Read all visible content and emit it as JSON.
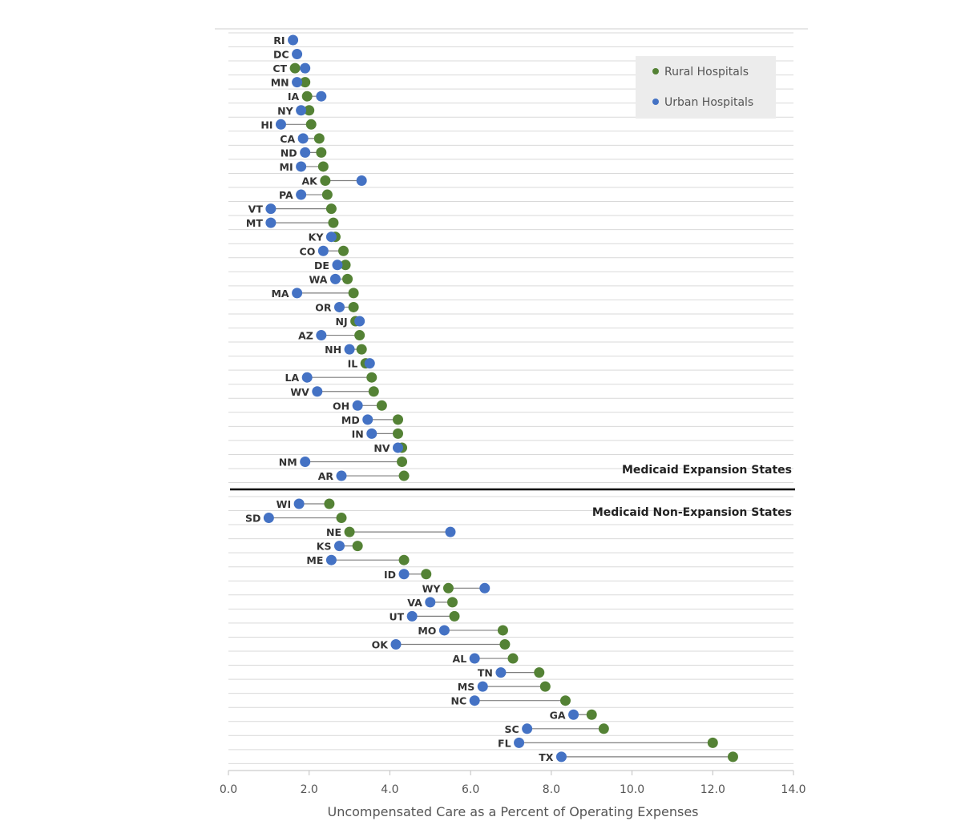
{
  "colors": {
    "rural": "#548235",
    "urban": "#4472C4",
    "grid": "#d9d9d9",
    "connector": "#7f7f7f",
    "legend_bg": "#ececec"
  },
  "legend": {
    "rural_label": "Rural Hospitals",
    "urban_label": "Urban Hospitals"
  },
  "sections": {
    "expansion_label": "Medicaid Expansion States",
    "non_expansion_label": "Medicaid Non-Expansion States"
  },
  "chart_data": {
    "type": "dumbbell",
    "xlabel": "Uncompensated Care as a Percent of Operating Expenses",
    "xlim": [
      0,
      14
    ],
    "x_ticks": [
      "0.0",
      "2.0",
      "4.0",
      "6.0",
      "8.0",
      "10.0",
      "12.0",
      "14.0"
    ],
    "grid": true,
    "legend_position": "top-right",
    "groups": [
      {
        "name": "Medicaid Expansion States",
        "states": [
          {
            "state": "RI",
            "rural": null,
            "urban": 1.6
          },
          {
            "state": "DC",
            "rural": null,
            "urban": 1.7
          },
          {
            "state": "CT",
            "rural": 1.65,
            "urban": 1.9
          },
          {
            "state": "MN",
            "rural": 1.9,
            "urban": 1.7
          },
          {
            "state": "IA",
            "rural": 1.95,
            "urban": 2.3
          },
          {
            "state": "NY",
            "rural": 2.0,
            "urban": 1.8
          },
          {
            "state": "HI",
            "rural": 2.05,
            "urban": 1.3
          },
          {
            "state": "CA",
            "rural": 2.25,
            "urban": 1.85
          },
          {
            "state": "ND",
            "rural": 2.3,
            "urban": 1.9
          },
          {
            "state": "MI",
            "rural": 2.35,
            "urban": 1.8
          },
          {
            "state": "AK",
            "rural": 2.4,
            "urban": 3.3
          },
          {
            "state": "PA",
            "rural": 2.45,
            "urban": 1.8
          },
          {
            "state": "VT",
            "rural": 2.55,
            "urban": 1.05
          },
          {
            "state": "MT",
            "rural": 2.6,
            "urban": 1.05
          },
          {
            "state": "KY",
            "rural": 2.65,
            "urban": 2.55
          },
          {
            "state": "CO",
            "rural": 2.85,
            "urban": 2.35
          },
          {
            "state": "DE",
            "rural": 2.9,
            "urban": 2.7
          },
          {
            "state": "WA",
            "rural": 2.95,
            "urban": 2.65
          },
          {
            "state": "MA",
            "rural": 3.1,
            "urban": 1.7
          },
          {
            "state": "OR",
            "rural": 3.1,
            "urban": 2.75
          },
          {
            "state": "NJ",
            "rural": 3.15,
            "urban": 3.25
          },
          {
            "state": "AZ",
            "rural": 3.25,
            "urban": 2.3
          },
          {
            "state": "NH",
            "rural": 3.3,
            "urban": 3.0
          },
          {
            "state": "IL",
            "rural": 3.4,
            "urban": 3.5
          },
          {
            "state": "LA",
            "rural": 3.55,
            "urban": 1.95
          },
          {
            "state": "WV",
            "rural": 3.6,
            "urban": 2.2
          },
          {
            "state": "OH",
            "rural": 3.8,
            "urban": 3.2
          },
          {
            "state": "MD",
            "rural": 4.2,
            "urban": 3.45
          },
          {
            "state": "IN",
            "rural": 4.2,
            "urban": 3.55
          },
          {
            "state": "NV",
            "rural": 4.3,
            "urban": 4.2
          },
          {
            "state": "NM",
            "rural": 4.3,
            "urban": 1.9
          },
          {
            "state": "AR",
            "rural": 4.35,
            "urban": 2.8
          }
        ]
      },
      {
        "name": "Medicaid Non-Expansion States",
        "states": [
          {
            "state": "WI",
            "rural": 2.5,
            "urban": 1.75
          },
          {
            "state": "SD",
            "rural": 2.8,
            "urban": 1.0
          },
          {
            "state": "NE",
            "rural": 3.0,
            "urban": 5.5
          },
          {
            "state": "KS",
            "rural": 3.2,
            "urban": 2.75
          },
          {
            "state": "ME",
            "rural": 4.35,
            "urban": 2.55
          },
          {
            "state": "ID",
            "rural": 4.9,
            "urban": 4.35
          },
          {
            "state": "WY",
            "rural": 5.45,
            "urban": 6.35
          },
          {
            "state": "VA",
            "rural": 5.55,
            "urban": 5.0
          },
          {
            "state": "UT",
            "rural": 5.6,
            "urban": 4.55
          },
          {
            "state": "MO",
            "rural": 6.8,
            "urban": 5.35
          },
          {
            "state": "OK",
            "rural": 6.85,
            "urban": 4.15
          },
          {
            "state": "AL",
            "rural": 7.05,
            "urban": 6.1
          },
          {
            "state": "TN",
            "rural": 7.7,
            "urban": 6.75
          },
          {
            "state": "MS",
            "rural": 7.85,
            "urban": 6.3
          },
          {
            "state": "NC",
            "rural": 8.35,
            "urban": 6.1
          },
          {
            "state": "GA",
            "rural": 9.0,
            "urban": 8.55
          },
          {
            "state": "SC",
            "rural": 9.3,
            "urban": 7.4
          },
          {
            "state": "FL",
            "rural": 12.0,
            "urban": 7.2
          },
          {
            "state": "TX",
            "rural": 12.5,
            "urban": 8.25
          }
        ]
      }
    ]
  }
}
